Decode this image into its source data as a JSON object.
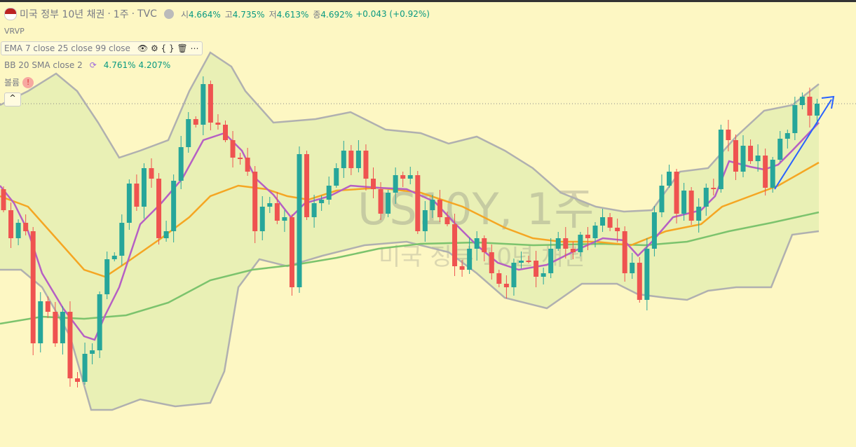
{
  "header": {
    "symbol": "미국 정부 10년 채권",
    "interval": "1주",
    "source": "TVC",
    "ohlc": [
      {
        "label": "시",
        "value": "4.664%"
      },
      {
        "label": "고",
        "value": "4.735%"
      },
      {
        "label": "저",
        "value": "4.613%"
      },
      {
        "label": "종",
        "value": "4.692%"
      }
    ],
    "change": "+0.043 (+0.92%)"
  },
  "indicators": {
    "vrvp": "VRVP",
    "ema": "EMA 7 close 25 close 99 close",
    "bb": "BB 20 SMA close 2",
    "bb_upper": "4.761%",
    "bb_lower": "4.207%",
    "volume": "볼륨"
  },
  "watermark": {
    "ticker": "US10Y, 1주",
    "name": "미국 정부 10년 채권"
  }
}
